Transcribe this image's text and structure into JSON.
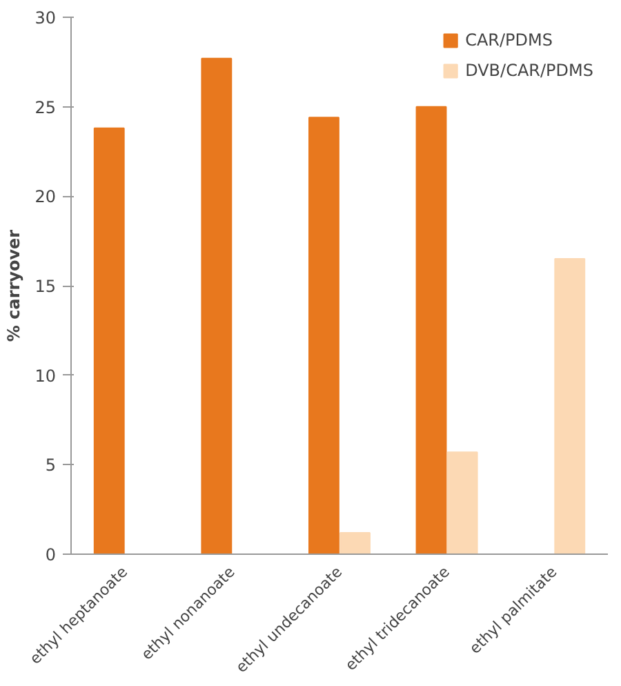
{
  "chart_data": {
    "type": "bar",
    "ylabel": "% carryover",
    "categories": [
      "ethyl heptanoate",
      "ethyl nonanoate",
      "ethyl undecanoate",
      "ethyl tridecanoate",
      "ethyl palmitate"
    ],
    "series": [
      {
        "name": "CAR/PDMS",
        "color": "#e8781e",
        "values": [
          23.8,
          27.7,
          24.4,
          25.0,
          null
        ]
      },
      {
        "name": "DVB/CAR/PDMS",
        "color": "#fcd9b4",
        "values": [
          null,
          null,
          1.2,
          5.7,
          16.5
        ]
      }
    ],
    "ylim": [
      0,
      30
    ],
    "yticks": [
      0,
      5,
      10,
      15,
      20,
      25,
      30
    ],
    "legend": "top right"
  }
}
